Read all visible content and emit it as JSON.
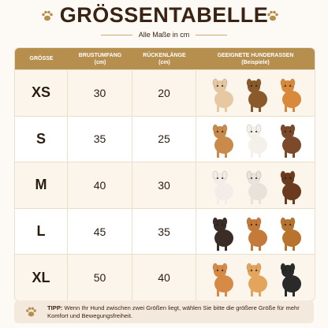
{
  "header": {
    "title": "GRÖSSENTABELLE",
    "subtitle": "Alle Maße in cm"
  },
  "table": {
    "columns": [
      {
        "label": "GRÖSSE"
      },
      {
        "label": "BRUSTUMFANG",
        "unit": "(cm)"
      },
      {
        "label": "RÜCKENLÄNGE",
        "unit": "(cm)"
      },
      {
        "label": "GEEIGNETE HUNDERASSEN",
        "unit": "(Beispiele)"
      }
    ],
    "rows": [
      [
        "XS",
        30,
        20
      ],
      [
        "S",
        35,
        25
      ],
      [
        "M",
        40,
        30
      ],
      [
        "L",
        45,
        35
      ],
      [
        "XL",
        50,
        40
      ]
    ]
  },
  "tip": {
    "label": "TIPP:",
    "text": "Wenn Ihr Hund zwischen zwei Größen liegt, wählen Sie bitte die größere Größe für mehr Komfort und Bewegungsfreiheit."
  }
}
